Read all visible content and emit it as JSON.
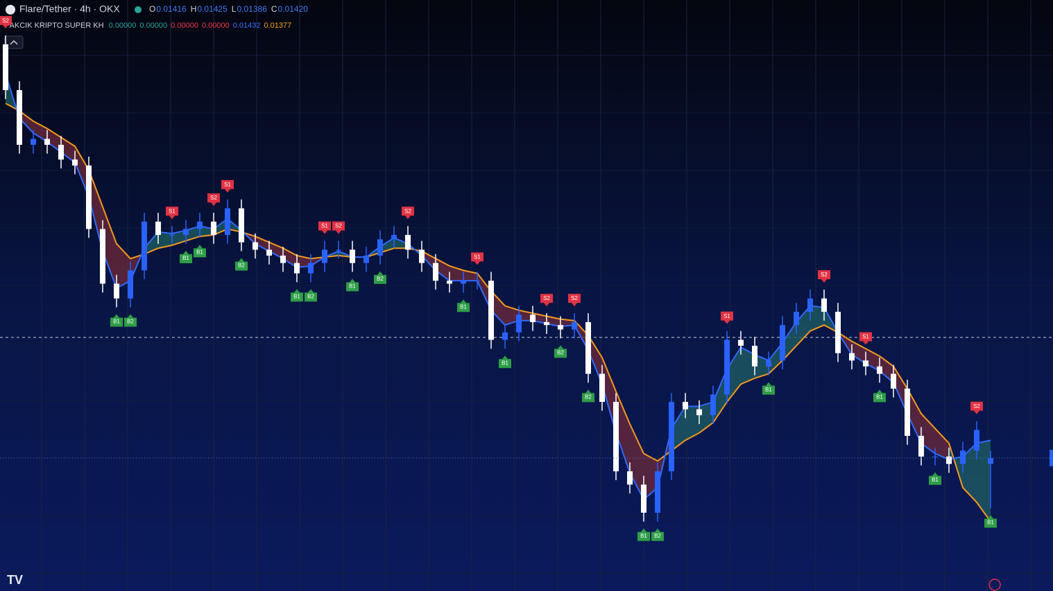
{
  "header": {
    "symbol": "Flare/Tether · 4h · OKX",
    "ohlc": [
      {
        "key": "O",
        "text": "0.01416"
      },
      {
        "key": "H",
        "text": "0.01425"
      },
      {
        "key": "L",
        "text": "0.01386"
      },
      {
        "key": "C",
        "text": "0.01420"
      }
    ],
    "indicator": "PAKCIK KRIPTO SUPER KH",
    "indicator_values": [
      {
        "text": "0.00000",
        "color": "#26a69a"
      },
      {
        "text": "0.00000",
        "color": "#26a69a"
      },
      {
        "text": "0.00000",
        "color": "#ef3b4b"
      },
      {
        "text": "0.00000",
        "color": "#ef3b4b"
      },
      {
        "text": "0.01432",
        "color": "#3d6ff5"
      },
      {
        "text": "0.01377",
        "color": "#f7a21b"
      }
    ]
  },
  "chart_data": {
    "type": "candlestick",
    "ylim": [
      0.0133,
      0.0173
    ],
    "up_color": "#2962ff",
    "down_color": "#ffffff",
    "fast_color": "#2f6bff",
    "slow_color": "#f39a1e",
    "bull_fill": "#1f5f63",
    "bear_fill": "#6e2a3a",
    "buy_color": "#2e9e47",
    "sell_color": "#e03243",
    "open": [
      0.017,
      0.01669,
      0.01632,
      0.01636,
      0.01632,
      0.01622,
      0.01618,
      0.01575,
      0.01538,
      0.01528,
      0.01547,
      0.0158,
      0.01571,
      0.01571,
      0.01575,
      0.0158,
      0.01571,
      0.01589,
      0.01566,
      0.01561,
      0.01557,
      0.01552,
      0.01545,
      0.01552,
      0.01561,
      0.01561,
      0.01552,
      0.01557,
      0.01568,
      0.01571,
      0.01561,
      0.01552,
      0.0154,
      0.01538,
      0.0154,
      0.0154,
      0.015,
      0.01505,
      0.01517,
      0.01512,
      0.0151,
      0.01507,
      0.01512,
      0.01477,
      0.01458,
      0.01411,
      0.01402,
      0.01383,
      0.01411,
      0.01458,
      0.01453,
      0.01449,
      0.01463,
      0.015,
      0.01496,
      0.01482,
      0.01486,
      0.0151,
      0.01519,
      0.01528,
      0.01519,
      0.01491,
      0.01486,
      0.01482,
      0.01477,
      0.01467,
      0.01435,
      0.01421,
      0.01421,
      0.01416,
      0.01425,
      0.01416
    ],
    "high": [
      0.01706,
      0.01675,
      0.01642,
      0.01642,
      0.01638,
      0.01628,
      0.01624,
      0.01581,
      0.01544,
      0.01553,
      0.01586,
      0.01586,
      0.01577,
      0.01581,
      0.01586,
      0.01586,
      0.01595,
      0.01595,
      0.01572,
      0.01567,
      0.01563,
      0.01558,
      0.01558,
      0.01567,
      0.01567,
      0.01567,
      0.01563,
      0.01574,
      0.01577,
      0.01577,
      0.01567,
      0.01558,
      0.01546,
      0.01546,
      0.01546,
      0.01546,
      0.01511,
      0.01523,
      0.01523,
      0.01518,
      0.01516,
      0.01518,
      0.01518,
      0.01483,
      0.01464,
      0.01417,
      0.01408,
      0.01417,
      0.01464,
      0.01464,
      0.01459,
      0.01469,
      0.01506,
      0.01506,
      0.01502,
      0.01492,
      0.01516,
      0.01525,
      0.01534,
      0.01534,
      0.01525,
      0.01497,
      0.01492,
      0.01488,
      0.01483,
      0.01473,
      0.01441,
      0.01427,
      0.01427,
      0.01431,
      0.01445,
      0.01425
    ],
    "low": [
      0.01663,
      0.01626,
      0.01626,
      0.01626,
      0.01616,
      0.01612,
      0.01569,
      0.01532,
      0.01522,
      0.01522,
      0.01541,
      0.01565,
      0.01565,
      0.01565,
      0.01569,
      0.01565,
      0.01565,
      0.0156,
      0.01555,
      0.01551,
      0.01546,
      0.01539,
      0.01539,
      0.01546,
      0.01555,
      0.01546,
      0.01546,
      0.01551,
      0.01562,
      0.01555,
      0.01546,
      0.01534,
      0.01532,
      0.01532,
      0.01534,
      0.01494,
      0.01494,
      0.01499,
      0.01506,
      0.01504,
      0.01501,
      0.01501,
      0.01471,
      0.01452,
      0.01405,
      0.01396,
      0.01377,
      0.01377,
      0.01405,
      0.01447,
      0.01443,
      0.01443,
      0.01457,
      0.0149,
      0.01476,
      0.01476,
      0.0148,
      0.01504,
      0.01513,
      0.01513,
      0.01485,
      0.0148,
      0.01476,
      0.01471,
      0.01461,
      0.01429,
      0.01415,
      0.01415,
      0.0141,
      0.0141,
      0.01419,
      0.01386
    ],
    "close": [
      0.01669,
      0.01632,
      0.01636,
      0.01632,
      0.01622,
      0.01618,
      0.01575,
      0.01538,
      0.01528,
      0.01547,
      0.0158,
      0.01571,
      0.01571,
      0.01575,
      0.0158,
      0.01571,
      0.01589,
      0.01566,
      0.01561,
      0.01557,
      0.01552,
      0.01545,
      0.01552,
      0.01561,
      0.01561,
      0.01552,
      0.01557,
      0.01568,
      0.01571,
      0.01561,
      0.01552,
      0.0154,
      0.01538,
      0.0154,
      0.0154,
      0.015,
      0.01505,
      0.01517,
      0.01512,
      0.0151,
      0.01507,
      0.01512,
      0.01477,
      0.01458,
      0.01411,
      0.01402,
      0.01383,
      0.01411,
      0.01458,
      0.01453,
      0.01449,
      0.01463,
      0.015,
      0.01496,
      0.01482,
      0.01486,
      0.0151,
      0.01519,
      0.01528,
      0.01519,
      0.01491,
      0.01486,
      0.01482,
      0.01477,
      0.01467,
      0.01435,
      0.01421,
      0.01421,
      0.01416,
      0.01425,
      0.01439,
      0.0142
    ],
    "fast": [
      0.0168,
      0.0165,
      0.0164,
      0.01634,
      0.01627,
      0.0162,
      0.01597,
      0.0156,
      0.01535,
      0.0154,
      0.01562,
      0.01573,
      0.01572,
      0.01574,
      0.01577,
      0.01575,
      0.01582,
      0.01574,
      0.01565,
      0.0156,
      0.01555,
      0.01549,
      0.0155,
      0.01556,
      0.0156,
      0.01556,
      0.01556,
      0.01563,
      0.01569,
      0.01565,
      0.01557,
      0.01547,
      0.0154,
      0.0154,
      0.0154,
      0.0152,
      0.0151,
      0.01513,
      0.01513,
      0.01511,
      0.01509,
      0.0151,
      0.01493,
      0.0147,
      0.01437,
      0.0141,
      0.01392,
      0.014,
      0.0144,
      0.01455,
      0.01455,
      0.01458,
      0.0148,
      0.01495,
      0.0149,
      0.01486,
      0.01498,
      0.01512,
      0.01523,
      0.01522,
      0.01505,
      0.0149,
      0.01484,
      0.01479,
      0.01471,
      0.0145,
      0.0143,
      0.01423,
      0.01419,
      0.01421,
      0.0143,
      0.01432
    ],
    "slow": [
      0.0166,
      0.01655,
      0.01648,
      0.01643,
      0.01637,
      0.01631,
      0.01615,
      0.0159,
      0.01565,
      0.01555,
      0.01558,
      0.01562,
      0.01564,
      0.01567,
      0.0157,
      0.01571,
      0.01575,
      0.01573,
      0.0157,
      0.01566,
      0.01562,
      0.01557,
      0.01555,
      0.01556,
      0.01557,
      0.01556,
      0.01556,
      0.01559,
      0.01562,
      0.01562,
      0.0156,
      0.01555,
      0.0155,
      0.01547,
      0.01545,
      0.01533,
      0.01523,
      0.0152,
      0.01518,
      0.01516,
      0.01514,
      0.01513,
      0.01503,
      0.01488,
      0.01465,
      0.01443,
      0.01423,
      0.01418,
      0.01425,
      0.01432,
      0.01437,
      0.01444,
      0.01458,
      0.0147,
      0.01474,
      0.01477,
      0.01486,
      0.01496,
      0.01506,
      0.0151,
      0.01505,
      0.01499,
      0.01494,
      0.01489,
      0.01482,
      0.01467,
      0.0145,
      0.0144,
      0.0143,
      0.014,
      0.0139,
      0.01377
    ],
    "signals": [
      "S2",
      null,
      null,
      null,
      null,
      null,
      null,
      null,
      "B1",
      "B2",
      null,
      null,
      "S1",
      "B1",
      "B1",
      "S2",
      "S1",
      "B2",
      null,
      null,
      null,
      "B1",
      "B2",
      "S1",
      "S2",
      "B1",
      null,
      "B2",
      null,
      "S2",
      null,
      null,
      null,
      "B1",
      "S1",
      null,
      "B1",
      null,
      null,
      "S2",
      "B2",
      "S2",
      "B2",
      null,
      null,
      null,
      "B1",
      "B2",
      null,
      null,
      null,
      null,
      "S1",
      null,
      null,
      "B1",
      null,
      null,
      null,
      "S2",
      null,
      null,
      "S1",
      "B1",
      null,
      null,
      null,
      "B1",
      null,
      null,
      "S2",
      "B1"
    ]
  }
}
